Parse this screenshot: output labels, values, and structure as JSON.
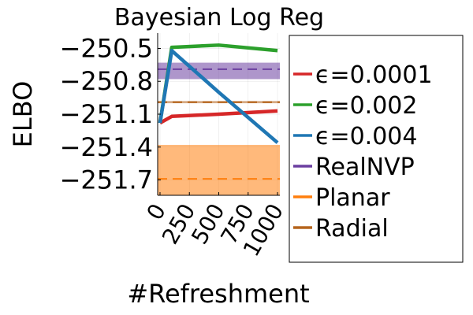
{
  "chart_data": {
    "type": "line",
    "title": "Bayesian Log Reg",
    "xlabel": "#Refreshment",
    "ylabel": "ELBO",
    "xlim": [
      -20,
      1020
    ],
    "ylim": [
      -251.84,
      -250.36
    ],
    "xticks": [
      {
        "value": 0,
        "label": "0"
      },
      {
        "value": 250,
        "label": "250"
      },
      {
        "value": 500,
        "label": "500"
      },
      {
        "value": 750,
        "label": "750"
      },
      {
        "value": 1000,
        "label": "1000"
      }
    ],
    "yticks": [
      {
        "value": -250.5,
        "label": "−250.5"
      },
      {
        "value": -250.8,
        "label": "−250.8"
      },
      {
        "value": -251.1,
        "label": "−251.1"
      },
      {
        "value": -251.4,
        "label": "−251.4"
      },
      {
        "value": -251.7,
        "label": "−251.7"
      }
    ],
    "grid": true,
    "legend_position": "outside-right",
    "series": [
      {
        "name": "ϵ=0.0001",
        "kind": "line",
        "color": "#d62728",
        "x": [
          0,
          100,
          500,
          1000
        ],
        "y": [
          -251.18,
          -251.12,
          -251.1,
          -251.07
        ]
      },
      {
        "name": "ϵ=0.002",
        "kind": "line",
        "color": "#2ca02c",
        "x": [
          0,
          100,
          500,
          1000
        ],
        "y": [
          -251.18,
          -250.49,
          -250.47,
          -250.52
        ]
      },
      {
        "name": "ϵ=0.004",
        "kind": "line",
        "color": "#1f77b4",
        "x": [
          0,
          100,
          500,
          1000
        ],
        "y": [
          -251.18,
          -250.52,
          -250.9,
          -251.36
        ]
      },
      {
        "name": "RealNVP",
        "kind": "hline_band",
        "color": "#6b3fa0",
        "mean": -250.69,
        "band": [
          -250.78,
          -250.63
        ]
      },
      {
        "name": "Planar",
        "kind": "hline_band",
        "color": "#ff7f0e",
        "mean": -251.69,
        "band": [
          -251.84,
          -251.38
        ]
      },
      {
        "name": "Radial",
        "kind": "hline_band",
        "color": "#b5651d",
        "mean": -250.99,
        "band": [
          -251.0,
          -250.98
        ]
      }
    ]
  }
}
